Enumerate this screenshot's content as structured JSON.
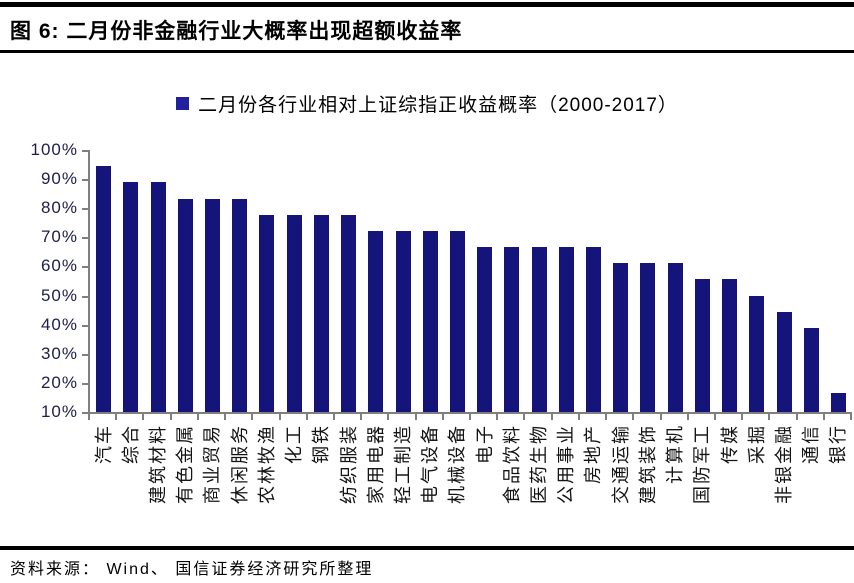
{
  "header": {
    "title": "图 6:  二月份非金融行业大概率出现超额收益率"
  },
  "footer": {
    "source": "资料来源： Wind、 国信证券经济研究所整理"
  },
  "chart_data": {
    "type": "bar",
    "legend": "二月份各行业相对上证综指正收益概率（2000-2017）",
    "legend_position": "top-center",
    "categories": [
      "汽车",
      "综合",
      "建筑材料",
      "有色金属",
      "商业贸易",
      "休闲服务",
      "农林牧渔",
      "化工",
      "钢铁",
      "纺织服装",
      "家用电器",
      "轻工制造",
      "电气设备",
      "机械设备",
      "电子",
      "食品饮料",
      "医药生物",
      "公用事业",
      "房地产",
      "交通运输",
      "建筑装饰",
      "计算机",
      "国防军工",
      "传媒",
      "采掘",
      "非银金融",
      "通信",
      "银行"
    ],
    "values": [
      94.4,
      88.9,
      88.9,
      83.3,
      83.3,
      83.3,
      77.8,
      77.8,
      77.8,
      77.8,
      72.2,
      72.2,
      72.2,
      72.2,
      66.7,
      66.7,
      66.7,
      66.7,
      66.7,
      61.1,
      61.1,
      61.1,
      55.6,
      55.6,
      50.0,
      44.4,
      38.9,
      16.7
    ],
    "xlabel": "",
    "ylabel": "",
    "ylim": [
      10,
      100
    ],
    "yticks": [
      "100%",
      "90%",
      "80%",
      "70%",
      "60%",
      "50%",
      "40%",
      "30%",
      "20%",
      "10%"
    ],
    "grid": false,
    "bar_color": "#14147A",
    "legend_marker_color": "#2121A0",
    "axis_color": "#7f7f7f"
  }
}
